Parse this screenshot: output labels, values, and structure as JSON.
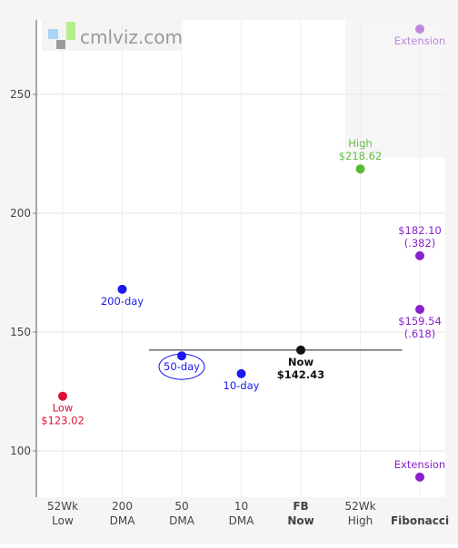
{
  "watermark": {
    "text": "cmlviz.com"
  },
  "chart_data": {
    "type": "scatter",
    "ylim": [
      80,
      278
    ],
    "yticks": [
      100,
      150,
      200,
      250
    ],
    "grid": true,
    "categories": [
      {
        "key": "52wk_low",
        "line1": "52Wk",
        "line2": "Low",
        "bold": false
      },
      {
        "key": "200dma",
        "line1": "200",
        "line2": "DMA",
        "bold": false
      },
      {
        "key": "50dma",
        "line1": "50",
        "line2": "DMA",
        "bold": false
      },
      {
        "key": "10dma",
        "line1": "10",
        "line2": "DMA",
        "bold": false
      },
      {
        "key": "now",
        "line1": "FB",
        "line2": "Now",
        "bold": true
      },
      {
        "key": "52wk_high",
        "line1": "52Wk",
        "line2": "High",
        "bold": false
      },
      {
        "key": "fibonacci",
        "line1": "Fibonacci",
        "line2": "",
        "bold": true
      }
    ],
    "points": [
      {
        "category": 0,
        "y": 123.02,
        "color": "#dd1133",
        "label_lines": [
          "Low",
          "$123.02"
        ],
        "label_pos": "below",
        "label_color": "#dd1133"
      },
      {
        "category": 1,
        "y": 168.0,
        "color": "#1a1aee",
        "label_lines": [
          "200-day"
        ],
        "label_pos": "below",
        "label_color": "#1a1aee"
      },
      {
        "category": 2,
        "y": 140.0,
        "color": "#1a1aee",
        "label_lines": [
          "50-day"
        ],
        "label_pos": "below-ellipse",
        "label_color": "#1a1aee"
      },
      {
        "category": 3,
        "y": 132.5,
        "color": "#1a1aee",
        "label_lines": [
          "10-day"
        ],
        "label_pos": "below",
        "label_color": "#1a1aee"
      },
      {
        "category": 4,
        "y": 142.43,
        "color": "#111111",
        "label_lines": [
          "Now",
          "$142.43"
        ],
        "label_pos": "below",
        "label_color": "#111111",
        "bold": true
      },
      {
        "category": 5,
        "y": 218.62,
        "color": "#55bb33",
        "label_lines": [
          "High",
          "$218.62"
        ],
        "label_pos": "above",
        "label_color": "#66bb44"
      },
      {
        "category": 6,
        "y": 277.5,
        "color": "#bb88dd",
        "label_lines": [
          "Extension"
        ],
        "label_pos": "below",
        "label_color": "#bb88dd"
      },
      {
        "category": 6,
        "y": 182.1,
        "color": "#8822cc",
        "label_lines": [
          "$182.10",
          "(.382)"
        ],
        "label_pos": "above",
        "label_color": "#8822cc"
      },
      {
        "category": 6,
        "y": 159.54,
        "color": "#8822cc",
        "label_lines": [
          "$159.54",
          "(.618)"
        ],
        "label_pos": "below",
        "label_color": "#8822cc"
      },
      {
        "category": 6,
        "y": 89.0,
        "color": "#8822cc",
        "label_lines": [
          "Extension"
        ],
        "label_pos": "above",
        "label_color": "#8822cc"
      }
    ],
    "reference_line": {
      "y": 142.43,
      "from_category": 1.45,
      "to_category": 5.7
    }
  }
}
